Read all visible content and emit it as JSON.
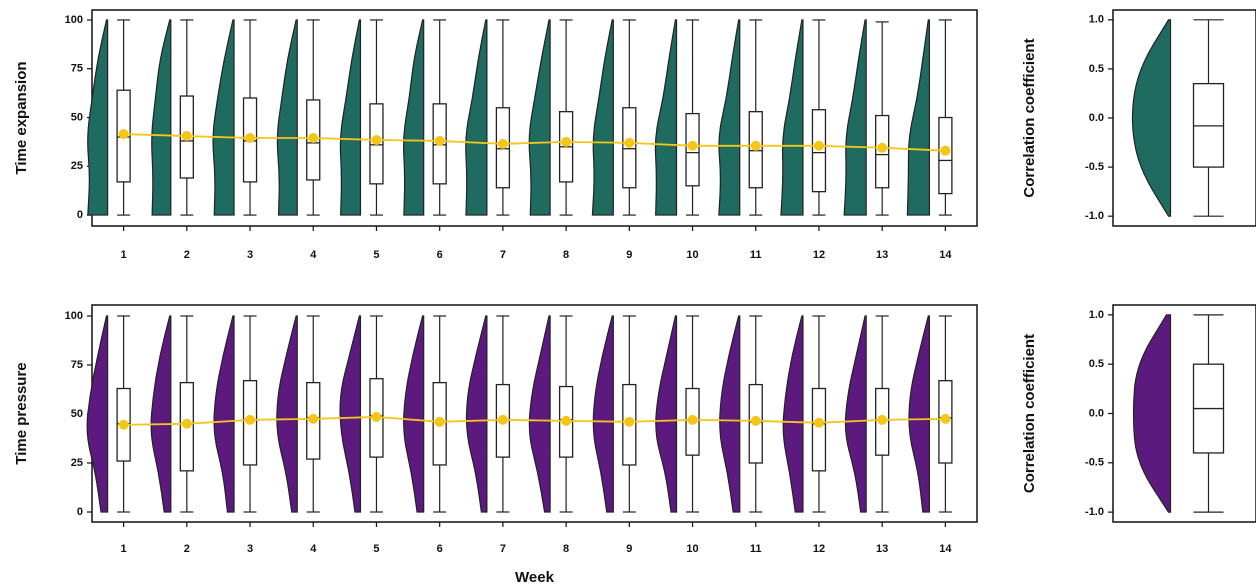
{
  "chart_data": [
    {
      "type": "raincloud",
      "ylabel": "Time expansion",
      "categories": [
        "1",
        "2",
        "3",
        "4",
        "5",
        "6",
        "7",
        "8",
        "9",
        "10",
        "11",
        "12",
        "13",
        "14"
      ],
      "ylim": [
        -5.6,
        105.1
      ],
      "yticks": [
        0,
        25,
        50,
        75,
        100
      ],
      "violin_color": "#1f6b5f",
      "mean_color": "#f5c518",
      "density_levels": [
        0,
        20,
        40,
        60,
        80,
        100
      ],
      "groups": [
        {
          "density": [
            0.9,
            0.8,
            0.95,
            0.7,
            0.45,
            0.05
          ],
          "min": 0,
          "q1": 17,
          "median": 40,
          "q3": 64,
          "max": 100,
          "mean": 41.5
        },
        {
          "density": [
            0.85,
            0.8,
            0.9,
            0.7,
            0.5,
            0.05
          ],
          "min": 0,
          "q1": 19,
          "median": 38,
          "q3": 61,
          "max": 100,
          "mean": 40.5
        },
        {
          "density": [
            0.9,
            0.85,
            1,
            0.75,
            0.45,
            0.05
          ],
          "min": 0,
          "q1": 17,
          "median": 38,
          "q3": 60,
          "max": 100,
          "mean": 39.5
        },
        {
          "density": [
            0.85,
            0.8,
            0.95,
            0.7,
            0.45,
            0.05
          ],
          "min": 0,
          "q1": 18,
          "median": 37,
          "q3": 59,
          "max": 100,
          "mean": 39.5
        },
        {
          "density": [
            0.9,
            0.85,
            0.95,
            0.65,
            0.4,
            0.05
          ],
          "min": 0,
          "q1": 16,
          "median": 36,
          "q3": 57,
          "max": 100,
          "mean": 38.5
        },
        {
          "density": [
            0.9,
            0.85,
            0.95,
            0.65,
            0.45,
            0.05
          ],
          "min": 0,
          "q1": 16,
          "median": 36,
          "q3": 57,
          "max": 100,
          "mean": 38
        },
        {
          "density": [
            0.95,
            0.9,
            1,
            0.65,
            0.4,
            0.05
          ],
          "min": 0,
          "q1": 14,
          "median": 34,
          "q3": 55,
          "max": 100,
          "mean": 36.5
        },
        {
          "density": [
            0.9,
            0.85,
            1,
            0.7,
            0.4,
            0.05
          ],
          "min": 0,
          "q1": 17,
          "median": 35,
          "q3": 53,
          "max": 100,
          "mean": 37.5
        },
        {
          "density": [
            0.95,
            0.85,
            0.95,
            0.65,
            0.4,
            0.05
          ],
          "min": 0,
          "q1": 14,
          "median": 34,
          "q3": 55,
          "max": 100,
          "mean": 37
        },
        {
          "density": [
            0.95,
            0.9,
            1,
            0.6,
            0.35,
            0.05
          ],
          "min": 0,
          "q1": 15,
          "median": 32,
          "q3": 52,
          "max": 100,
          "mean": 35.5
        },
        {
          "density": [
            0.95,
            0.85,
            1,
            0.6,
            0.35,
            0.05
          ],
          "min": 0,
          "q1": 14,
          "median": 33,
          "q3": 53,
          "max": 100,
          "mean": 35.5
        },
        {
          "density": [
            1,
            0.9,
            0.95,
            0.6,
            0.35,
            0.05
          ],
          "min": 0,
          "q1": 12,
          "median": 32,
          "q3": 54,
          "max": 100,
          "mean": 35.5
        },
        {
          "density": [
            1,
            0.9,
            0.95,
            0.6,
            0.35,
            0.05
          ],
          "min": 0,
          "q1": 14,
          "median": 31,
          "q3": 51,
          "max": 99,
          "mean": 34.5
        },
        {
          "density": [
            1,
            0.95,
            0.95,
            0.55,
            0.3,
            0.05
          ],
          "min": 0,
          "q1": 11,
          "median": 28,
          "q3": 50,
          "max": 100,
          "mean": 33
        }
      ]
    },
    {
      "type": "raincloud",
      "ylabel": "Correlation coefficient",
      "ylim": [
        -1.1,
        1.1
      ],
      "yticks": [
        {
          "value": -1,
          "label": "-1.0"
        },
        {
          "value": -0.5,
          "label": "-0.5"
        },
        {
          "value": 0,
          "label": "0.0"
        },
        {
          "value": 0.5,
          "label": "0.5"
        },
        {
          "value": 1,
          "label": "1.0"
        }
      ],
      "violin_color": "#1f6b5f",
      "density_levels": [
        -1,
        -0.5,
        0,
        0.5,
        1
      ],
      "groups": [
        {
          "density": [
            0.05,
            0.8,
            1,
            0.8,
            0.05
          ],
          "min": -1,
          "q1": -0.5,
          "median": -0.08,
          "q3": 0.35,
          "max": 1
        }
      ]
    },
    {
      "type": "raincloud",
      "ylabel": "Time pressure",
      "xlabel": "Week",
      "categories": [
        "1",
        "2",
        "3",
        "4",
        "5",
        "6",
        "7",
        "8",
        "9",
        "10",
        "11",
        "12",
        "13",
        "14"
      ],
      "ylim": [
        -5.1,
        105.6
      ],
      "yticks": [
        0,
        25,
        50,
        75,
        100
      ],
      "violin_color": "#5c1a7f",
      "mean_color": "#f5c518",
      "density_levels": [
        0,
        20,
        40,
        60,
        80,
        100
      ],
      "groups": [
        {
          "density": [
            0.3,
            0.55,
            1,
            0.8,
            0.45,
            0.05
          ],
          "min": 0,
          "q1": 26,
          "median": 45,
          "q3": 63,
          "max": 100,
          "mean": 44.5
        },
        {
          "density": [
            0.3,
            0.55,
            0.95,
            0.8,
            0.5,
            0.05
          ],
          "min": 0,
          "q1": 21,
          "median": 45,
          "q3": 66,
          "max": 100,
          "mean": 45
        },
        {
          "density": [
            0.3,
            0.5,
            0.95,
            0.85,
            0.5,
            0.05
          ],
          "min": 0,
          "q1": 24,
          "median": 47,
          "q3": 67,
          "max": 100,
          "mean": 47
        },
        {
          "density": [
            0.25,
            0.5,
            0.95,
            0.9,
            0.5,
            0.05
          ],
          "min": 0,
          "q1": 27,
          "median": 48,
          "q3": 66,
          "max": 100,
          "mean": 47.5
        },
        {
          "density": [
            0.25,
            0.5,
            0.9,
            0.95,
            0.5,
            0.05
          ],
          "min": 0,
          "q1": 28,
          "median": 49,
          "q3": 68,
          "max": 100,
          "mean": 48.5
        },
        {
          "density": [
            0.3,
            0.55,
            0.95,
            0.85,
            0.5,
            0.05
          ],
          "min": 0,
          "q1": 24,
          "median": 46,
          "q3": 66,
          "max": 100,
          "mean": 46
        },
        {
          "density": [
            0.25,
            0.5,
            0.95,
            0.9,
            0.5,
            0.05
          ],
          "min": 0,
          "q1": 28,
          "median": 47,
          "q3": 65,
          "max": 100,
          "mean": 47
        },
        {
          "density": [
            0.25,
            0.55,
            1,
            0.85,
            0.45,
            0.05
          ],
          "min": 0,
          "q1": 28,
          "median": 47,
          "q3": 64,
          "max": 100,
          "mean": 46.5
        },
        {
          "density": [
            0.3,
            0.55,
            0.95,
            0.85,
            0.5,
            0.05
          ],
          "min": 0,
          "q1": 24,
          "median": 46,
          "q3": 65,
          "max": 100,
          "mean": 46
        },
        {
          "density": [
            0.25,
            0.5,
            1,
            0.85,
            0.45,
            0.05
          ],
          "min": 0,
          "q1": 29,
          "median": 47,
          "q3": 63,
          "max": 100,
          "mean": 47
        },
        {
          "density": [
            0.3,
            0.55,
            0.95,
            0.85,
            0.5,
            0.05
          ],
          "min": 0,
          "q1": 25,
          "median": 46,
          "q3": 65,
          "max": 100,
          "mean": 46.5
        },
        {
          "density": [
            0.35,
            0.6,
            0.95,
            0.8,
            0.5,
            0.05
          ],
          "min": 0,
          "q1": 21,
          "median": 45,
          "q3": 63,
          "max": 100,
          "mean": 45.5
        },
        {
          "density": [
            0.25,
            0.5,
            1,
            0.85,
            0.45,
            0.05
          ],
          "min": 0,
          "q1": 29,
          "median": 47,
          "q3": 63,
          "max": 100,
          "mean": 47
        },
        {
          "density": [
            0.3,
            0.5,
            0.95,
            0.9,
            0.5,
            0.05
          ],
          "min": 0,
          "q1": 25,
          "median": 48,
          "q3": 67,
          "max": 100,
          "mean": 47.5
        }
      ]
    },
    {
      "type": "raincloud",
      "ylabel": "Correlation coefficient",
      "ylim": [
        -1.1,
        1.1
      ],
      "yticks": [
        {
          "value": -1,
          "label": "-1.0"
        },
        {
          "value": -0.5,
          "label": "-0.5"
        },
        {
          "value": 0,
          "label": "0.0"
        },
        {
          "value": 0.5,
          "label": "0.5"
        },
        {
          "value": 1,
          "label": "1.0"
        }
      ],
      "violin_color": "#5c1a7f",
      "density_levels": [
        -1,
        -0.5,
        0,
        0.5,
        1
      ],
      "groups": [
        {
          "density": [
            0.05,
            0.85,
            0.95,
            0.85,
            0.1
          ],
          "min": -1,
          "q1": -0.4,
          "median": 0.05,
          "q3": 0.5,
          "max": 1
        }
      ]
    }
  ]
}
